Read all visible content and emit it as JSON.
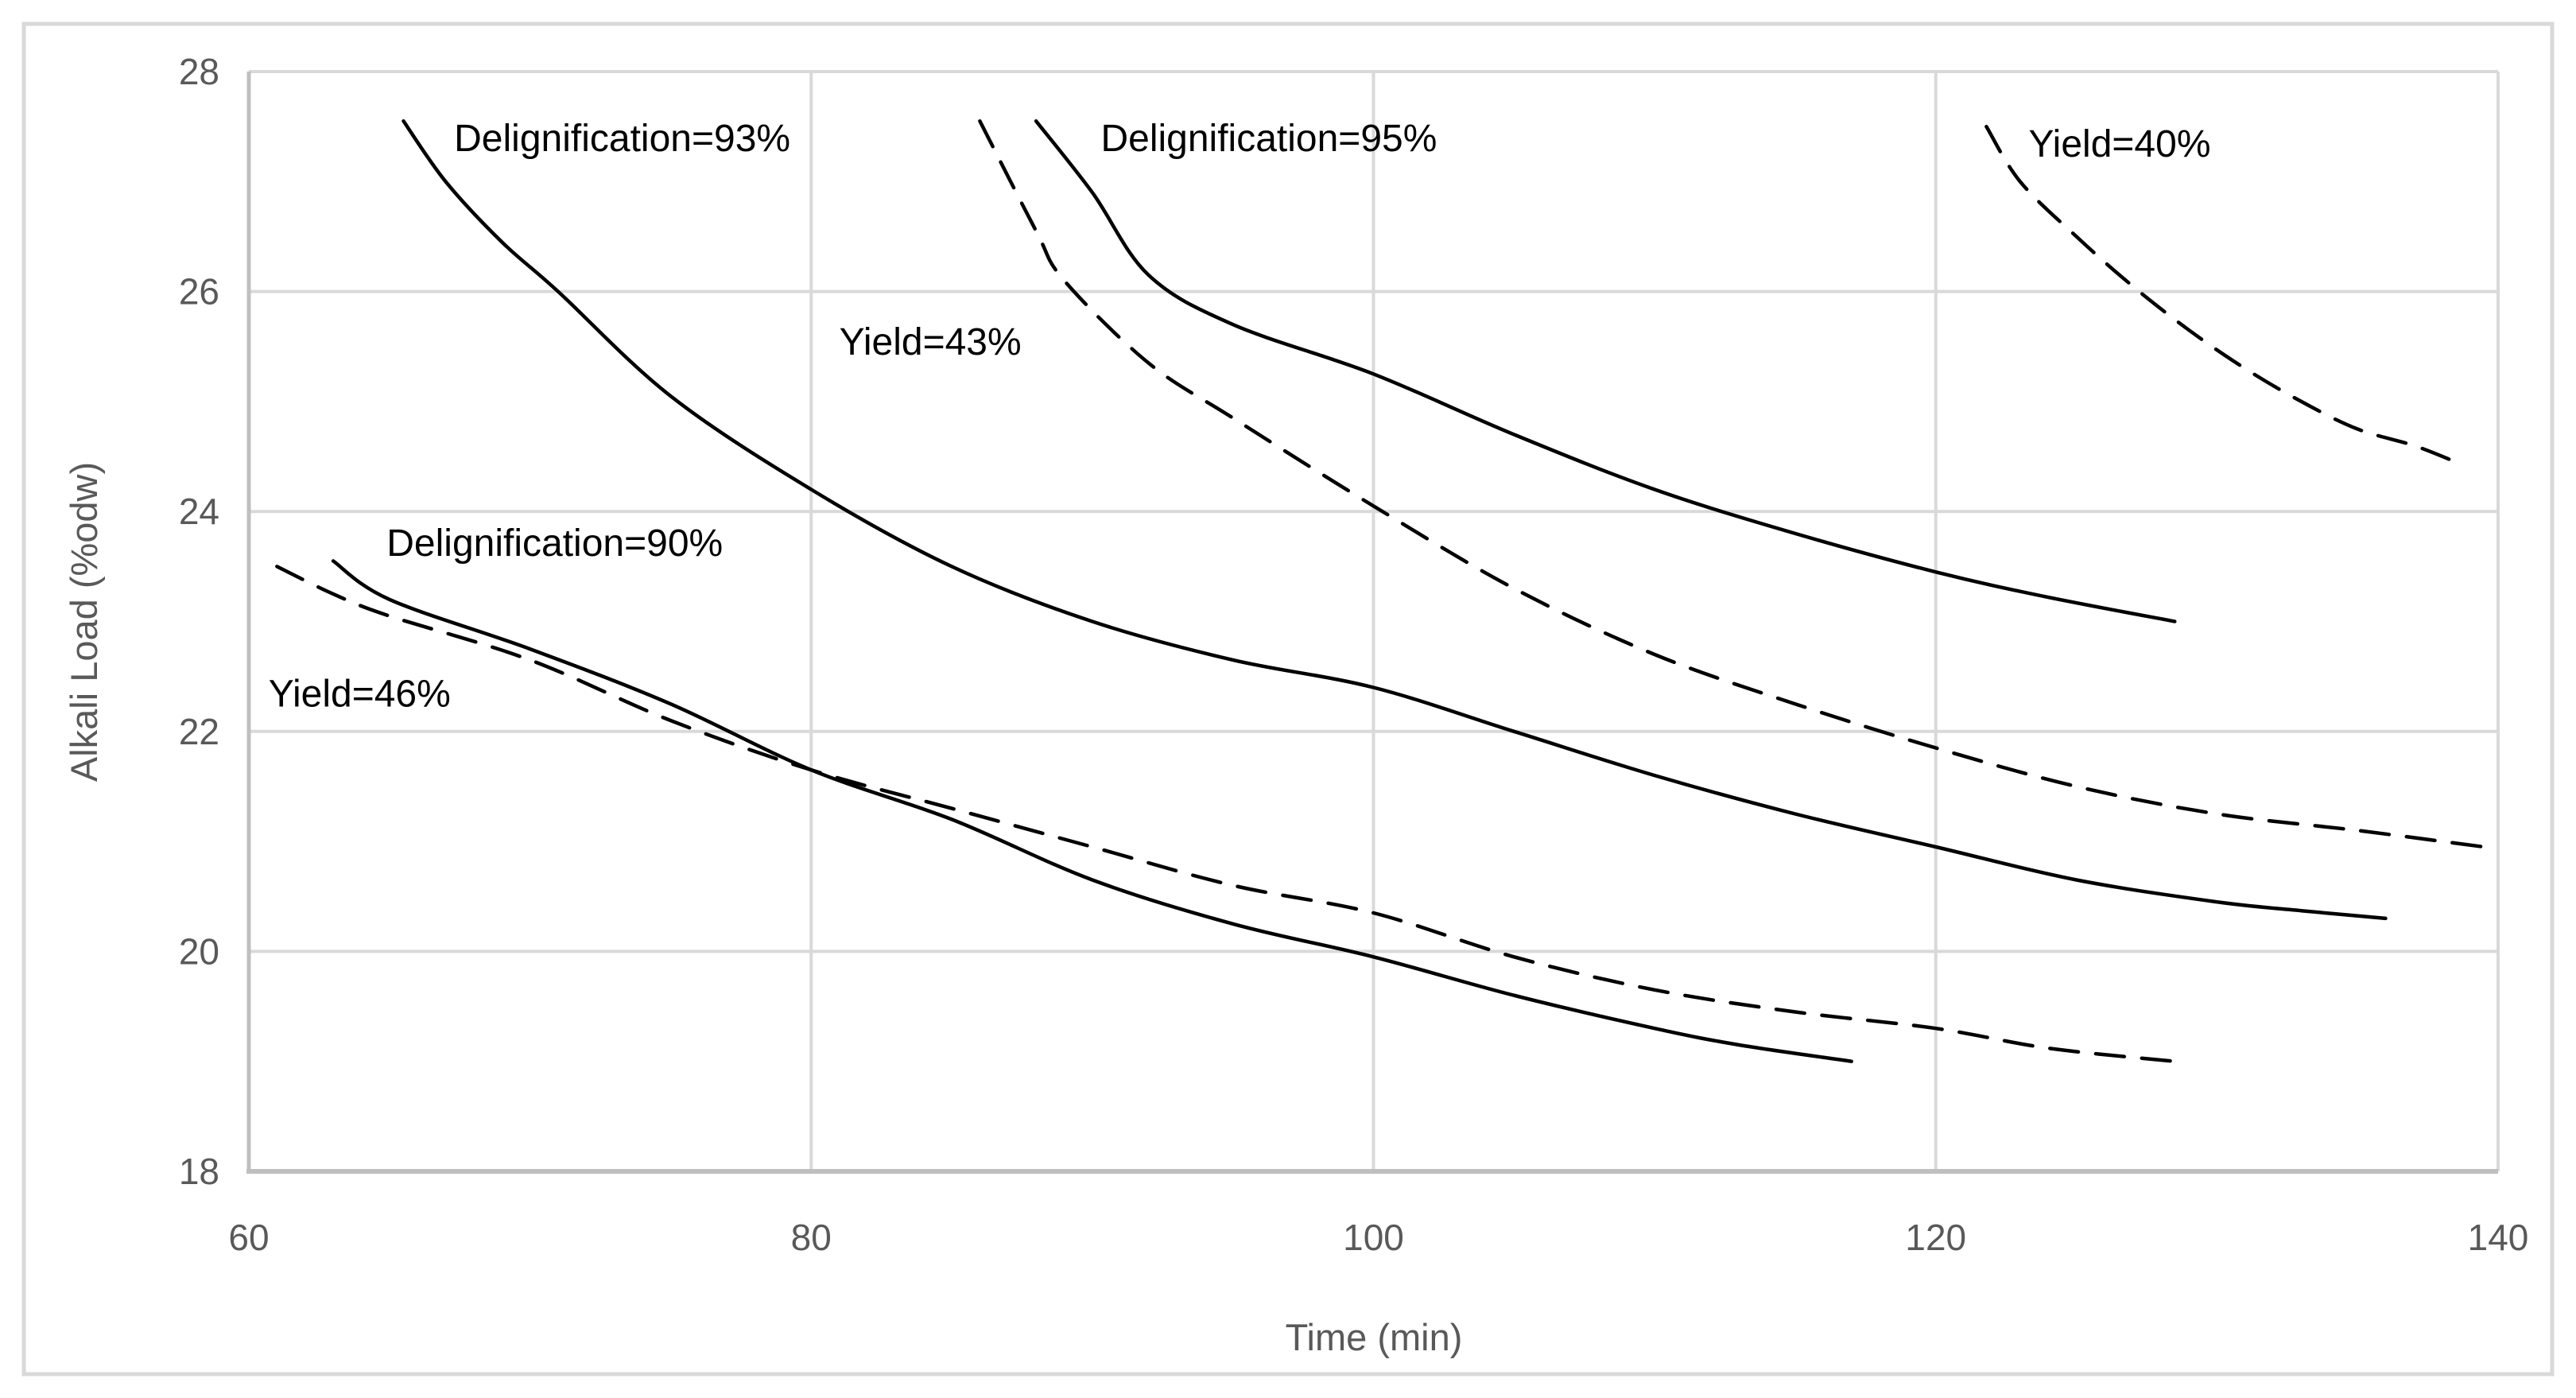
{
  "figure": {
    "background": "#ffffff",
    "border_color": "#d9d9d9"
  },
  "chart_data": {
    "type": "line",
    "title": "",
    "xlabel": "Time (min)",
    "ylabel": "Alkali Load (%odw)",
    "xlim": [
      60,
      140
    ],
    "ylim": [
      18,
      28
    ],
    "x_ticks": [
      60,
      80,
      100,
      120,
      140
    ],
    "y_ticks": [
      18,
      20,
      22,
      24,
      26,
      28
    ],
    "grid": true,
    "legend_position": "none",
    "style": {
      "grid_color": "#d9d9d9",
      "axis_color": "#bfbfbf",
      "tick_color": "#595959",
      "curve_color": "#000000",
      "border_color": "#d9d9d9",
      "background": "#ffffff"
    },
    "series": [
      {
        "name": "Delignification=93%",
        "line_style": "solid",
        "points": [
          [
            65.5,
            27.55
          ],
          [
            67,
            27.0
          ],
          [
            69,
            26.45
          ],
          [
            71,
            26.0
          ],
          [
            75,
            25.05
          ],
          [
            80,
            24.2
          ],
          [
            85,
            23.5
          ],
          [
            90,
            23.0
          ],
          [
            95,
            22.65
          ],
          [
            100,
            22.4
          ],
          [
            105,
            22.0
          ],
          [
            110,
            21.6
          ],
          [
            115,
            21.25
          ],
          [
            120,
            20.95
          ],
          [
            125,
            20.65
          ],
          [
            130,
            20.45
          ],
          [
            133,
            20.37
          ],
          [
            136,
            20.3
          ]
        ],
        "label": {
          "text": "Delignification=93%",
          "x": 67.3,
          "y": 27.4
        }
      },
      {
        "name": "Delignification=95%",
        "line_style": "solid",
        "points": [
          [
            88,
            27.55
          ],
          [
            90,
            26.9
          ],
          [
            92,
            26.15
          ],
          [
            95,
            25.7
          ],
          [
            100,
            25.25
          ],
          [
            105,
            24.7
          ],
          [
            110,
            24.2
          ],
          [
            115,
            23.8
          ],
          [
            120,
            23.45
          ],
          [
            124,
            23.22
          ],
          [
            128.5,
            23.0
          ]
        ],
        "label": {
          "text": "Delignification=95%",
          "x": 90.3,
          "y": 27.4
        }
      },
      {
        "name": "Delignification=90%",
        "line_style": "solid",
        "points": [
          [
            63,
            23.55
          ],
          [
            65,
            23.2
          ],
          [
            70,
            22.75
          ],
          [
            75,
            22.25
          ],
          [
            80,
            21.65
          ],
          [
            85,
            21.2
          ],
          [
            90,
            20.65
          ],
          [
            95,
            20.25
          ],
          [
            100,
            19.95
          ],
          [
            105,
            19.6
          ],
          [
            110,
            19.3
          ],
          [
            113,
            19.15
          ],
          [
            117,
            19.0
          ]
        ],
        "label": {
          "text": "Delignification=90%",
          "x": 64.9,
          "y": 23.72
        }
      },
      {
        "name": "Yield=46%",
        "line_style": "dashed",
        "points": [
          [
            61,
            23.5
          ],
          [
            63,
            23.25
          ],
          [
            65,
            23.05
          ],
          [
            70,
            22.65
          ],
          [
            75,
            22.1
          ],
          [
            80,
            21.65
          ],
          [
            85,
            21.3
          ],
          [
            90,
            20.95
          ],
          [
            95,
            20.6
          ],
          [
            100,
            20.35
          ],
          [
            105,
            19.95
          ],
          [
            110,
            19.65
          ],
          [
            115,
            19.45
          ],
          [
            120,
            19.3
          ],
          [
            124,
            19.12
          ],
          [
            128.5,
            19.0
          ]
        ],
        "label": {
          "text": "Yield=46%",
          "x": 60.7,
          "y": 22.35
        }
      },
      {
        "name": "Yield=43%",
        "line_style": "dashed",
        "points": [
          [
            86,
            27.55
          ],
          [
            88,
            26.55
          ],
          [
            89,
            26.1
          ],
          [
            92,
            25.35
          ],
          [
            95,
            24.85
          ],
          [
            100,
            24.05
          ],
          [
            105,
            23.3
          ],
          [
            110,
            22.7
          ],
          [
            115,
            22.25
          ],
          [
            120,
            21.85
          ],
          [
            125,
            21.5
          ],
          [
            130,
            21.25
          ],
          [
            135,
            21.1
          ],
          [
            139.5,
            20.95
          ]
        ],
        "label": {
          "text": "Yield=43%",
          "x": 81.0,
          "y": 25.55
        }
      },
      {
        "name": "Yield=40%",
        "line_style": "dashed",
        "points": [
          [
            121.8,
            27.5
          ],
          [
            123,
            27.0
          ],
          [
            125,
            26.5
          ],
          [
            127,
            26.05
          ],
          [
            129,
            25.65
          ],
          [
            131,
            25.3
          ],
          [
            133,
            25.0
          ],
          [
            135,
            24.75
          ],
          [
            137,
            24.6
          ],
          [
            138.5,
            24.45
          ]
        ],
        "label": {
          "text": "Yield=40%",
          "x": 123.3,
          "y": 27.35
        }
      }
    ]
  }
}
